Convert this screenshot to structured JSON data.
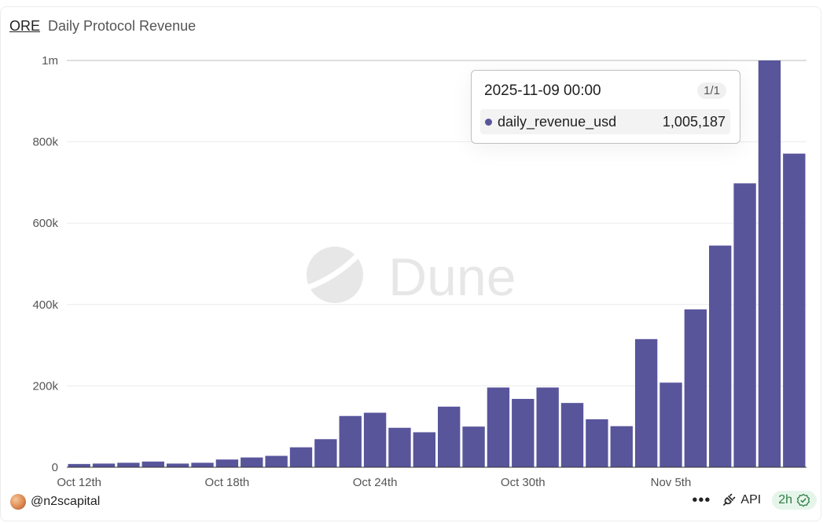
{
  "header": {
    "name": "ORE",
    "title": "Daily Protocol Revenue"
  },
  "watermark": "Dune",
  "tooltip": {
    "date": "2025-11-09 00:00",
    "page": "1/1",
    "series": "daily_revenue_usd",
    "value": "1,005,187"
  },
  "footer": {
    "author": "@n2scapital",
    "more": "•••",
    "api": "API",
    "freshness": "2h"
  },
  "colors": {
    "bar": "#58559b",
    "fresh_badge": "#2e7d45"
  },
  "icons": [
    "avatar",
    "more-icon",
    "api-plug-icon",
    "check-badge-icon"
  ],
  "chart_data": {
    "type": "bar",
    "title": "Daily Protocol Revenue",
    "series_name": "daily_revenue_usd",
    "x": [
      "2025-10-12",
      "2025-10-13",
      "2025-10-14",
      "2025-10-15",
      "2025-10-16",
      "2025-10-17",
      "2025-10-18",
      "2025-10-19",
      "2025-10-20",
      "2025-10-21",
      "2025-10-22",
      "2025-10-23",
      "2025-10-24",
      "2025-10-25",
      "2025-10-26",
      "2025-10-27",
      "2025-10-28",
      "2025-10-29",
      "2025-10-30",
      "2025-10-31",
      "2025-11-01",
      "2025-11-02",
      "2025-11-03",
      "2025-11-04",
      "2025-11-05",
      "2025-11-06",
      "2025-11-07",
      "2025-11-08",
      "2025-11-09",
      "2025-11-10"
    ],
    "values": [
      8000,
      9000,
      11000,
      14000,
      9000,
      11000,
      19000,
      24000,
      28000,
      49000,
      69000,
      126000,
      134000,
      97000,
      86000,
      149000,
      100000,
      196000,
      168000,
      196000,
      158000,
      118000,
      101000,
      315000,
      208000,
      388000,
      545000,
      698000,
      1005187,
      771000
    ],
    "x_tick_labels": [
      "Oct 12th",
      "Oct 18th",
      "Oct 24th",
      "Oct 30th",
      "Nov 5th"
    ],
    "x_tick_indices": [
      0,
      6,
      12,
      18,
      24
    ],
    "y_ticks": [
      0,
      200000,
      400000,
      600000,
      800000,
      1000000
    ],
    "y_tick_labels": [
      "0",
      "200k",
      "400k",
      "600k",
      "800k",
      "1m"
    ],
    "ylim": [
      0,
      1000000
    ],
    "grid": true,
    "legend": "none"
  }
}
